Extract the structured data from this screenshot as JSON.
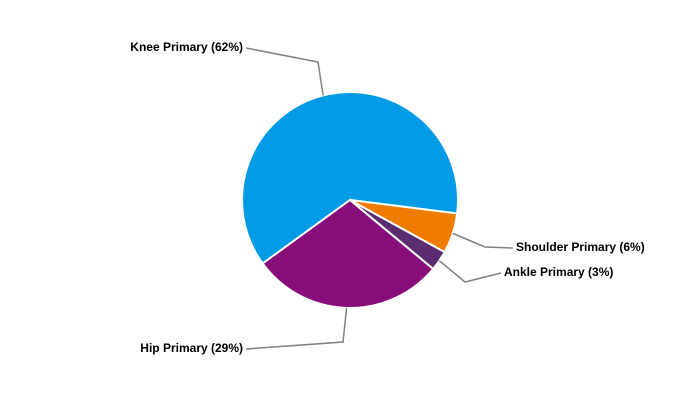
{
  "chart_data": {
    "type": "pie",
    "values": [
      62,
      29,
      3,
      6
    ],
    "value_labels": [
      "Knee Primary (62%)",
      "Hip Primary (29%)",
      "Ankle Primary (3%)",
      "Shoulder Primary (6%)"
    ],
    "colors": [
      "#039be5",
      "#870e7a",
      "#5b2c6f",
      "#ef7c00"
    ]
  }
}
